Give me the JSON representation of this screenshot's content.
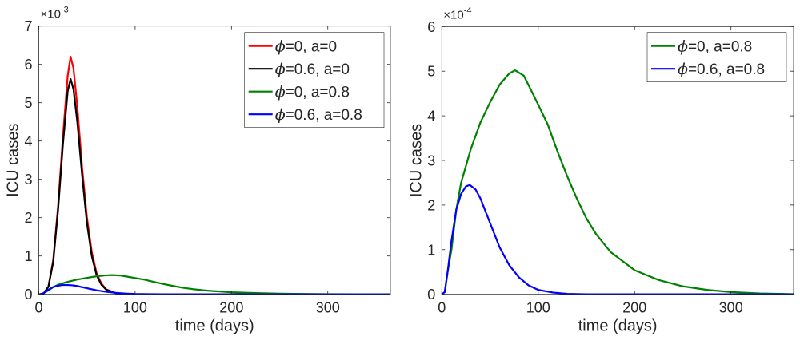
{
  "chart_data": [
    {
      "type": "line",
      "title": "",
      "xlabel": "time (days)",
      "ylabel": "ICU cases",
      "xlim": [
        0,
        365
      ],
      "ylim": [
        0,
        0.007
      ],
      "exponent_label": "×10",
      "exponent": "-3",
      "scale": 0.001,
      "xticks": [
        0,
        100,
        200,
        300
      ],
      "yticks": [
        0,
        1,
        2,
        3,
        4,
        5,
        6,
        7
      ],
      "legend_position": "top-right",
      "series": [
        {
          "name": "=0, a=0",
          "symbol": "ϕ",
          "color": "#ff0000",
          "x": [
            0,
            5,
            10,
            15,
            20,
            25,
            30,
            33,
            36,
            40,
            45,
            50,
            55,
            60,
            65,
            70,
            80,
            90,
            100,
            365
          ],
          "y": [
            0,
            2e-05,
            0.0002,
            0.0009,
            0.0023,
            0.0041,
            0.0057,
            0.0062,
            0.0059,
            0.0049,
            0.0033,
            0.002,
            0.0011,
            0.00055,
            0.00028,
            0.00013,
            3e-05,
            5e-06,
            0,
            0
          ]
        },
        {
          "name": "=0.6, a=0",
          "symbol": "ϕ",
          "color": "#000000",
          "x": [
            0,
            5,
            10,
            15,
            20,
            25,
            30,
            33,
            36,
            40,
            45,
            50,
            55,
            60,
            65,
            70,
            80,
            90,
            100,
            365
          ],
          "y": [
            0,
            2e-05,
            0.0002,
            0.00085,
            0.0022,
            0.0039,
            0.0053,
            0.00562,
            0.00535,
            0.0045,
            0.0031,
            0.00185,
            0.001,
            0.0005,
            0.00025,
            0.00012,
            3e-05,
            5e-06,
            0,
            0
          ]
        },
        {
          "name": "=0, a=0.8",
          "symbol": "ϕ",
          "color": "#008000",
          "x": [
            0,
            3,
            6,
            10,
            15,
            20,
            30,
            40,
            50,
            60,
            70,
            76,
            85,
            92,
            100,
            110,
            120,
            130,
            140,
            150,
            160,
            175,
            200,
            225,
            250,
            275,
            300,
            330,
            365
          ],
          "y": [
            0,
            5e-06,
            5e-05,
            0.0001,
            0.00019,
            0.00025,
            0.000325,
            0.000385,
            0.00043,
            0.00047,
            0.000495,
            0.000502,
            0.00049,
            0.00046,
            0.000425,
            0.00038,
            0.00032,
            0.000265,
            0.000215,
            0.00017,
            0.000135,
            9.5e-05,
            5.4e-05,
            3.2e-05,
            1.8e-05,
            1e-05,
            5e-06,
            2e-06,
            5e-07
          ]
        },
        {
          "name": "=0.6, a=0.8",
          "symbol": "ϕ",
          "color": "#0000ff",
          "x": [
            0,
            3,
            6,
            10,
            15,
            20,
            25,
            29,
            35,
            40,
            50,
            60,
            70,
            80,
            90,
            100,
            115,
            130,
            150,
            365
          ],
          "y": [
            0,
            5e-06,
            5e-05,
            0.00012,
            0.00019,
            0.000225,
            0.000242,
            0.000245,
            0.000235,
            0.000215,
            0.00016,
            0.000105,
            6.5e-05,
            3.8e-05,
            2e-05,
            1e-05,
            4e-06,
            1e-06,
            2e-07,
            0
          ]
        }
      ]
    },
    {
      "type": "line",
      "title": "",
      "xlabel": "time (days)",
      "ylabel": "ICU cases",
      "xlim": [
        0,
        365
      ],
      "ylim": [
        0,
        0.0006
      ],
      "exponent_label": "×10",
      "exponent": "-4",
      "scale": 0.0001,
      "xticks": [
        0,
        100,
        200,
        300
      ],
      "yticks": [
        0,
        1,
        2,
        3,
        4,
        5,
        6
      ],
      "legend_position": "top-right",
      "series": [
        {
          "name": "=0, a=0.8",
          "symbol": "ϕ",
          "color": "#008000",
          "x": [
            0,
            3,
            6,
            10,
            15,
            20,
            30,
            40,
            50,
            60,
            70,
            76,
            85,
            92,
            100,
            110,
            120,
            130,
            140,
            150,
            160,
            175,
            200,
            225,
            250,
            275,
            300,
            330,
            365
          ],
          "y": [
            0,
            5e-06,
            5e-05,
            0.0001,
            0.00019,
            0.00025,
            0.000325,
            0.000385,
            0.00043,
            0.00047,
            0.000495,
            0.000502,
            0.00049,
            0.00046,
            0.000425,
            0.00038,
            0.00032,
            0.000265,
            0.000215,
            0.00017,
            0.000135,
            9.5e-05,
            5.4e-05,
            3.2e-05,
            1.8e-05,
            1e-05,
            5e-06,
            2e-06,
            5e-07
          ]
        },
        {
          "name": "=0.6, a=0.8",
          "symbol": "ϕ",
          "color": "#0000ff",
          "x": [
            0,
            3,
            6,
            10,
            15,
            20,
            25,
            29,
            35,
            40,
            50,
            60,
            70,
            80,
            90,
            100,
            115,
            130,
            150,
            365
          ],
          "y": [
            0,
            5e-06,
            5e-05,
            0.00012,
            0.00019,
            0.000225,
            0.000242,
            0.000245,
            0.000235,
            0.000215,
            0.00016,
            0.000105,
            6.5e-05,
            3.8e-05,
            2e-05,
            1e-05,
            4e-06,
            1e-06,
            2e-07,
            0
          ]
        }
      ]
    }
  ]
}
